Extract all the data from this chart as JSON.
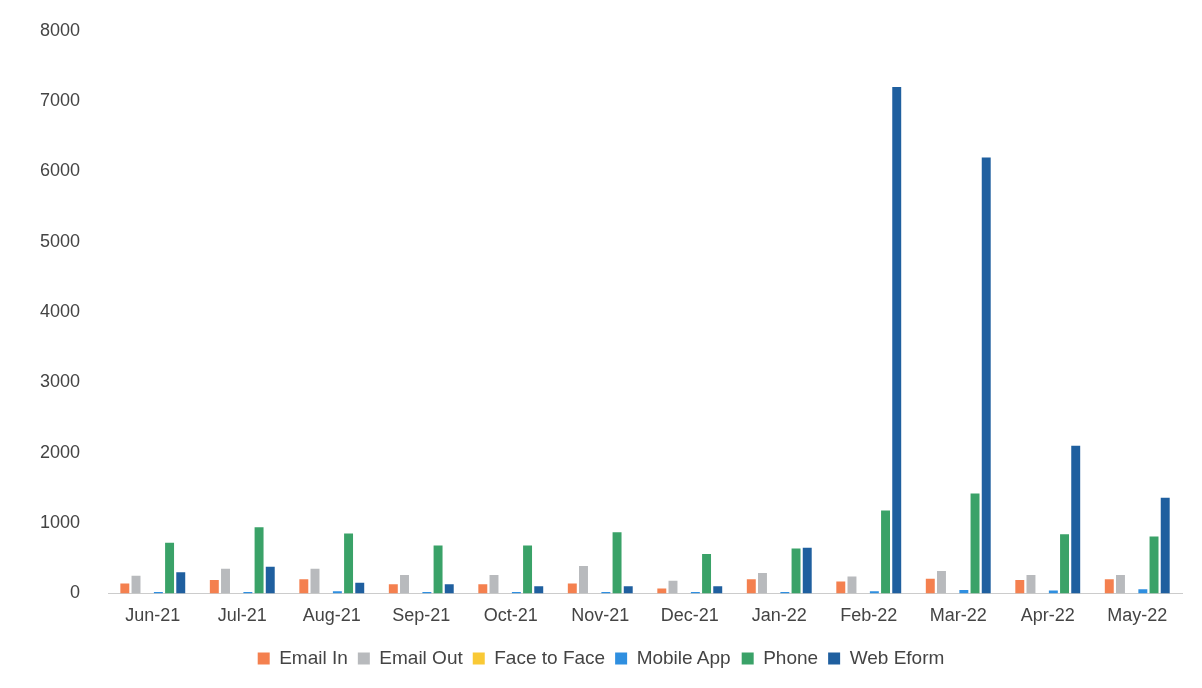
{
  "chart_data": {
    "type": "bar",
    "categories": [
      "Jun-21",
      "Jul-21",
      "Aug-21",
      "Sep-21",
      "Oct-21",
      "Nov-21",
      "Dec-21",
      "Jan-22",
      "Feb-22",
      "Mar-22",
      "Apr-22",
      "May-22"
    ],
    "series": [
      {
        "name": "Email In",
        "color": "#f4804f",
        "values": [
          140,
          190,
          200,
          130,
          130,
          140,
          70,
          200,
          170,
          210,
          190,
          200
        ]
      },
      {
        "name": "Email Out",
        "color": "#b8babd",
        "values": [
          250,
          350,
          350,
          260,
          260,
          390,
          180,
          290,
          240,
          320,
          260,
          260
        ]
      },
      {
        "name": "Face to Face",
        "color": "#f9c935",
        "values": [
          0,
          0,
          0,
          0,
          0,
          0,
          0,
          0,
          0,
          0,
          0,
          0
        ]
      },
      {
        "name": "Mobile App",
        "color": "#2f8fe0",
        "values": [
          20,
          20,
          30,
          20,
          20,
          20,
          20,
          20,
          30,
          50,
          40,
          60
        ]
      },
      {
        "name": "Phone",
        "color": "#3aa268",
        "values": [
          720,
          940,
          850,
          680,
          680,
          870,
          560,
          640,
          1180,
          1420,
          840,
          810
        ]
      },
      {
        "name": "Web Eform",
        "color": "#1f5f9f",
        "values": [
          300,
          380,
          150,
          130,
          100,
          100,
          100,
          650,
          7200,
          6200,
          2100,
          1360
        ]
      }
    ],
    "ylim": [
      0,
      8000
    ],
    "yticks": [
      0,
      1000,
      2000,
      3000,
      4000,
      5000,
      6000,
      7000,
      8000
    ],
    "grid": false,
    "legend": "bottom"
  }
}
